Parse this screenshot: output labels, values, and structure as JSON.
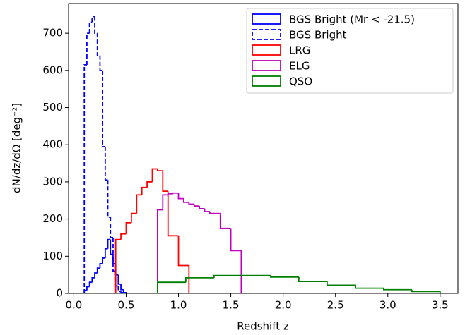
{
  "chart_data": {
    "type": "histogram",
    "xlabel": "Redshift z",
    "ylabel": "dN/dz/dΩ [deg⁻²]",
    "xlim": [
      -0.05,
      3.67
    ],
    "ylim": [
      0,
      780
    ],
    "xticks": [
      {
        "value": 0,
        "label": "0.0"
      },
      {
        "value": 0.5,
        "label": "0.5"
      },
      {
        "value": 1,
        "label": "1.0"
      },
      {
        "value": 1.5,
        "label": "1.5"
      },
      {
        "value": 2,
        "label": "2.0"
      },
      {
        "value": 2.5,
        "label": "2.5"
      },
      {
        "value": 3,
        "label": "3.0"
      },
      {
        "value": 3.5,
        "label": "3.5"
      }
    ],
    "yticks": [
      0,
      100,
      200,
      300,
      400,
      500,
      600,
      700
    ],
    "legend": "upper right",
    "series": [
      {
        "name": "BGS Bright (Mr < -21.5)",
        "color": "#0000ff",
        "dashed": false,
        "bins": [
          0.1,
          0.125,
          0.15,
          0.175,
          0.2,
          0.225,
          0.25,
          0.275,
          0.3,
          0.325,
          0.35,
          0.375,
          0.4,
          0.425,
          0.45,
          0.475,
          0.5
        ],
        "values": [
          8,
          18,
          30,
          42,
          55,
          68,
          80,
          95,
          120,
          145,
          105,
          80,
          50,
          25,
          10,
          2
        ]
      },
      {
        "name": "BGS Bright",
        "color": "#0000ff",
        "dashed": true,
        "bins": [
          0.1,
          0.125,
          0.15,
          0.175,
          0.2,
          0.225,
          0.25,
          0.275,
          0.3,
          0.325,
          0.35,
          0.375,
          0.4,
          0.425,
          0.45,
          0.475,
          0.5
        ],
        "values": [
          615,
          700,
          730,
          745,
          700,
          640,
          600,
          395,
          305,
          205,
          150,
          60,
          20,
          5,
          2,
          1
        ]
      },
      {
        "name": "LRG",
        "color": "#ff0000",
        "dashed": false,
        "bins": [
          0.4,
          0.45,
          0.5,
          0.55,
          0.6,
          0.65,
          0.7,
          0.75,
          0.8,
          0.85,
          0.9,
          0.95,
          1.0,
          1.05,
          1.1
        ],
        "values": [
          145,
          160,
          190,
          215,
          265,
          285,
          300,
          335,
          330,
          275,
          155,
          155,
          75,
          75
        ]
      },
      {
        "name": "ELG",
        "color": "#bf00bf",
        "dashed": false,
        "bins": [
          0.8,
          0.85,
          0.9,
          0.95,
          1.0,
          1.05,
          1.1,
          1.15,
          1.2,
          1.25,
          1.3,
          1.35,
          1.4,
          1.45,
          1.5,
          1.55,
          1.6
        ],
        "values": [
          225,
          265,
          268,
          270,
          255,
          245,
          240,
          235,
          228,
          220,
          215,
          215,
          175,
          175,
          115,
          115
        ]
      },
      {
        "name": "QSO",
        "color": "#008000",
        "dashed": false,
        "bins": [
          0.8,
          1.07,
          1.34,
          1.61,
          1.88,
          2.15,
          2.42,
          2.69,
          2.96,
          3.23,
          3.5
        ],
        "values": [
          30,
          42,
          48,
          48,
          44,
          32,
          22,
          14,
          10,
          5
        ]
      }
    ]
  }
}
